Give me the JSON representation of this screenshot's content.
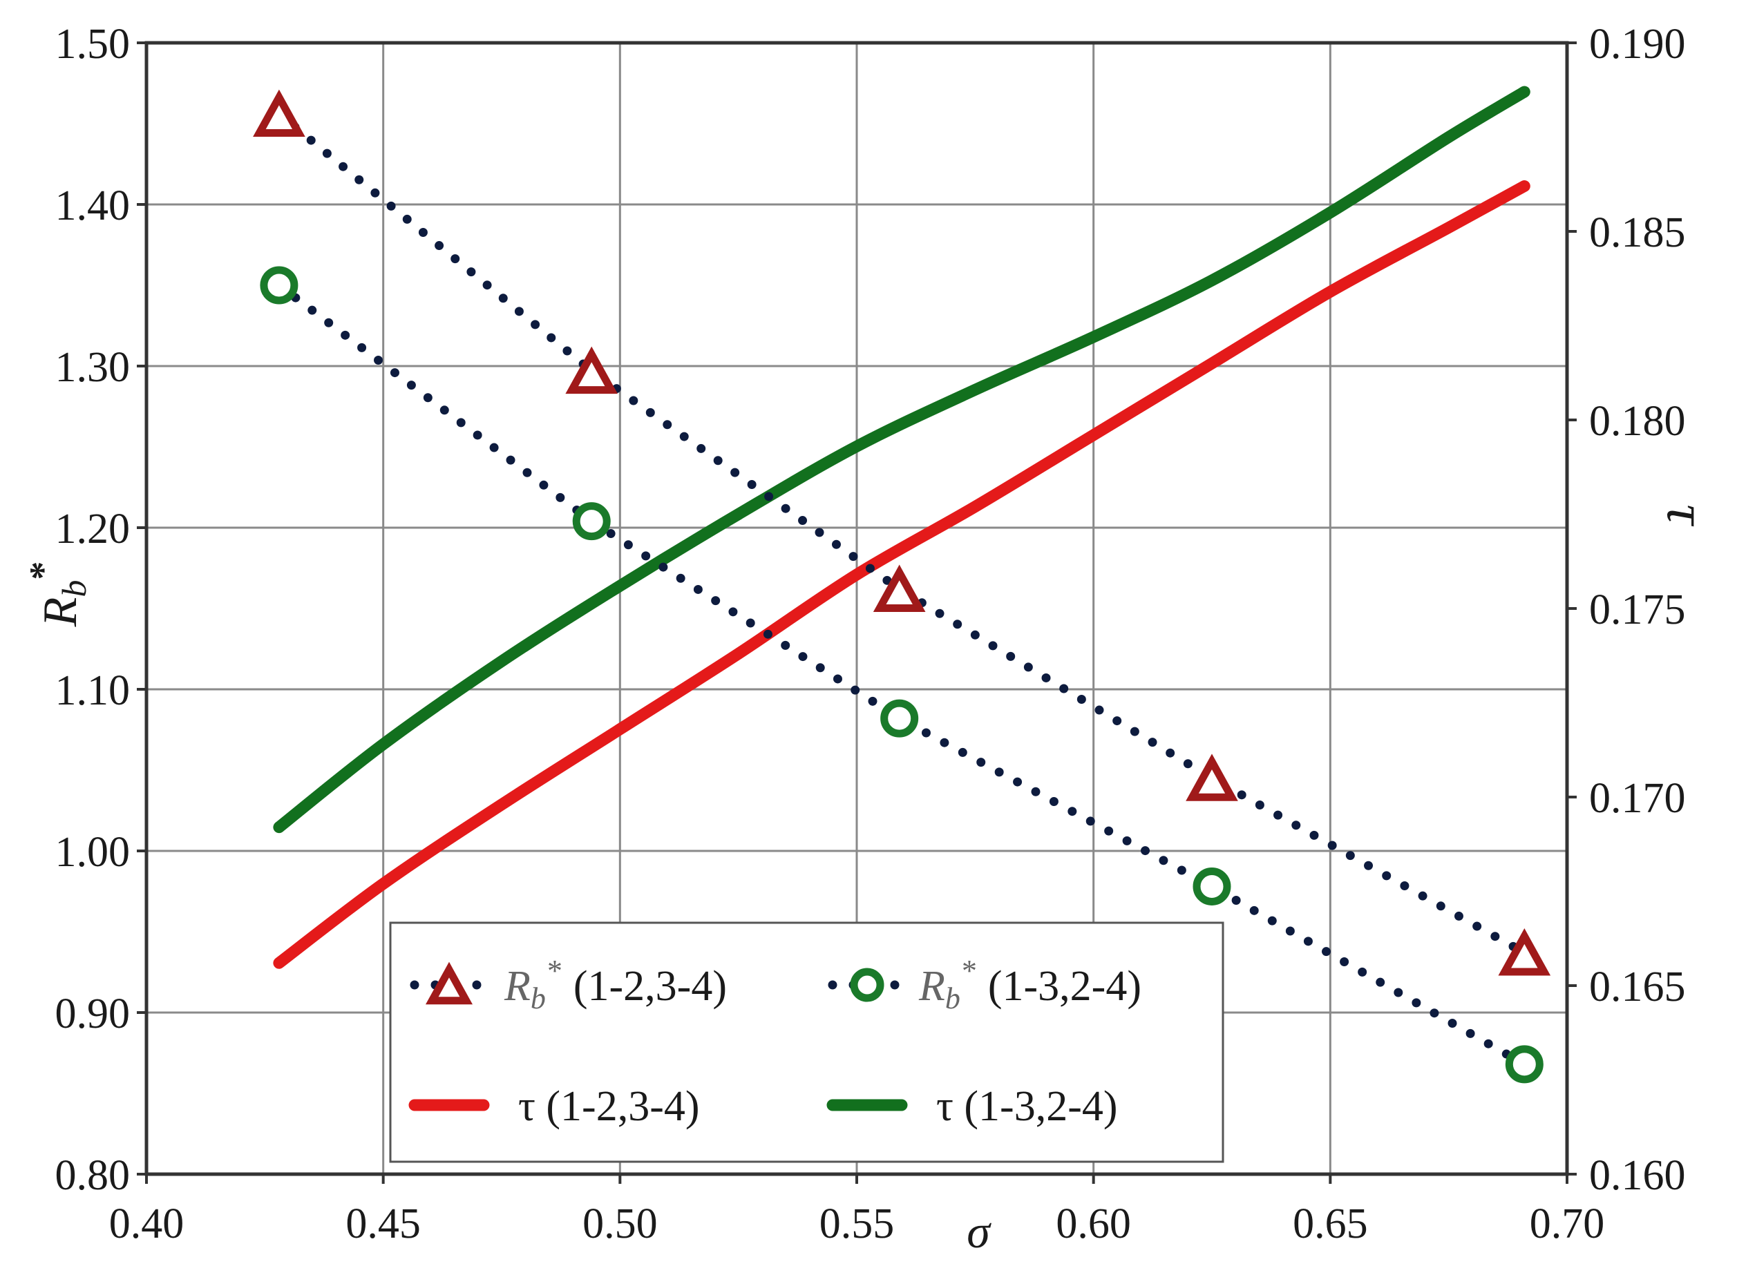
{
  "chart_data": {
    "type": "line",
    "xlabel": "σ",
    "ylabel_left": "Rb*",
    "ylabel_left_main": "R",
    "ylabel_left_sub": "b",
    "ylabel_left_sup": "*",
    "ylabel_right": "τ",
    "xlim": [
      0.4,
      0.7
    ],
    "ylim_left": [
      0.8,
      1.5
    ],
    "ylim_right": [
      0.16,
      0.19
    ],
    "x_ticks": [
      0.4,
      0.45,
      0.5,
      0.55,
      0.6,
      0.65,
      0.7
    ],
    "x_tick_labels": [
      "0.40",
      "0.45",
      "0.50",
      "0.55",
      "0.60",
      "0.65",
      "0.70"
    ],
    "y_left_ticks": [
      0.8,
      0.9,
      1.0,
      1.1,
      1.2,
      1.3,
      1.4,
      1.5
    ],
    "y_left_tick_labels": [
      "0.80",
      "0.90",
      "1.00",
      "1.10",
      "1.20",
      "1.30",
      "1.40",
      "1.50"
    ],
    "y_right_ticks": [
      0.16,
      0.165,
      0.17,
      0.175,
      0.18,
      0.185,
      0.19
    ],
    "y_right_tick_labels": [
      "0.160",
      "0.165",
      "0.170",
      "0.175",
      "0.180",
      "0.185",
      "0.190"
    ],
    "grid": true,
    "legend_position": "bottom-center",
    "series": [
      {
        "id": "rb-12-34",
        "legend_main": "R",
        "legend_sub": "b",
        "legend_sup": "*",
        "legend_suffix": "(1-2,3-4)",
        "axis": "left",
        "style": "dotted-marker",
        "marker": "triangle",
        "marker_color": "#a01a1a",
        "line_color": "#0d1b3e",
        "x": [
          0.428,
          0.494,
          0.559,
          0.625,
          0.691
        ],
        "y": [
          1.456,
          1.297,
          1.162,
          1.045,
          0.937
        ]
      },
      {
        "id": "rb-13-24",
        "legend_main": "R",
        "legend_sub": "b",
        "legend_sup": "*",
        "legend_suffix": "(1-3,2-4)",
        "axis": "left",
        "style": "dotted-marker",
        "marker": "circle",
        "marker_color": "#1a7a2a",
        "line_color": "#0d1b3e",
        "x": [
          0.428,
          0.494,
          0.559,
          0.625,
          0.691
        ],
        "y": [
          1.35,
          1.204,
          1.082,
          0.978,
          0.868
        ]
      },
      {
        "id": "tau-12-34",
        "name": "τ (1-2,3-4)",
        "axis": "right",
        "style": "solid",
        "line_color": "#e41a1a",
        "x": [
          0.428,
          0.45,
          0.475,
          0.5,
          0.525,
          0.55,
          0.575,
          0.6,
          0.625,
          0.65,
          0.675,
          0.691
        ],
        "y": [
          0.1656,
          0.1677,
          0.1698,
          0.1718,
          0.1738,
          0.1759,
          0.1777,
          0.1796,
          0.1815,
          0.1834,
          0.1851,
          0.1862
        ]
      },
      {
        "id": "tau-13-24",
        "name": "τ (1-3,2-4)",
        "axis": "right",
        "style": "solid",
        "line_color": "#12701e",
        "x": [
          0.428,
          0.45,
          0.475,
          0.5,
          0.525,
          0.55,
          0.575,
          0.6,
          0.625,
          0.65,
          0.675,
          0.691
        ],
        "y": [
          0.1692,
          0.1714,
          0.1736,
          0.1756,
          0.1775,
          0.1793,
          0.1808,
          0.1822,
          0.1837,
          0.1855,
          0.1875,
          0.1887
        ]
      }
    ]
  }
}
